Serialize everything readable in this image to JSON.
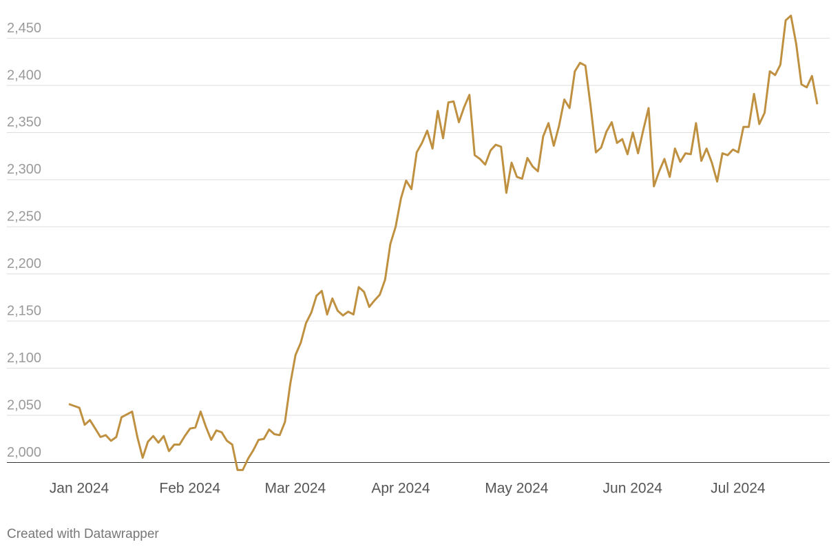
{
  "chart_data": {
    "type": "line",
    "categories": [
      "Jan 2024",
      null,
      null,
      null,
      null,
      null,
      null,
      null,
      null,
      null,
      null,
      null,
      null,
      null,
      null,
      null,
      null,
      null,
      null,
      null,
      null,
      "Feb 2024",
      null,
      null,
      null,
      null,
      null,
      null,
      null,
      null,
      null,
      null,
      null,
      null,
      null,
      null,
      null,
      null,
      null,
      null,
      null,
      "Mar 2024",
      null,
      null,
      null,
      null,
      null,
      null,
      null,
      null,
      null,
      null,
      null,
      null,
      null,
      null,
      null,
      null,
      null,
      null,
      null,
      "Apr 2024",
      null,
      null,
      null,
      null,
      null,
      null,
      null,
      null,
      null,
      null,
      null,
      null,
      null,
      null,
      null,
      null,
      null,
      null,
      null,
      null,
      null,
      "May 2024",
      null,
      null,
      null,
      null,
      null,
      null,
      null,
      null,
      null,
      null,
      null,
      null,
      null,
      null,
      null,
      null,
      null,
      null,
      null,
      null,
      null,
      "Jun 2024",
      null,
      null,
      null,
      null,
      null,
      null,
      null,
      null,
      null,
      null,
      null,
      null,
      null,
      null,
      null,
      null,
      null,
      null,
      null,
      "Jul 2024",
      null,
      null,
      null,
      null,
      null,
      null,
      null,
      null,
      null,
      null,
      null,
      null,
      null,
      null,
      null,
      null,
      null
    ],
    "series": [
      {
        "color": "#bf9040",
        "values": [
          2062,
          2060,
          2058,
          2040,
          2045,
          2036,
          2027,
          2029,
          2023,
          2027,
          2048,
          2051,
          2054,
          2027,
          2005,
          2022,
          2028,
          2021,
          2028,
          2012,
          2019,
          2019,
          2028,
          2036,
          2037,
          2054,
          2038,
          2024,
          2034,
          2032,
          2023,
          2019,
          1992,
          1992,
          2004,
          2013,
          2024,
          2025,
          2035,
          2030,
          2029,
          2043,
          2083,
          2114,
          2127,
          2148,
          2159,
          2177,
          2182,
          2157,
          2174,
          2161,
          2156,
          2160,
          2157,
          2186,
          2181,
          2165,
          2172,
          2178,
          2194,
          2232,
          2250,
          2280,
          2299,
          2290,
          2329,
          2339,
          2352,
          2333,
          2373,
          2344,
          2382,
          2383,
          2361,
          2377,
          2390,
          2326,
          2322,
          2316,
          2331,
          2337,
          2335,
          2286,
          2318,
          2303,
          2301,
          2323,
          2314,
          2309,
          2346,
          2360,
          2336,
          2357,
          2385,
          2376,
          2415,
          2424,
          2421,
          2378,
          2329,
          2334,
          2351,
          2361,
          2339,
          2343,
          2327,
          2350,
          2328,
          2353,
          2376,
          2293,
          2309,
          2322,
          2303,
          2333,
          2319,
          2328,
          2327,
          2360,
          2320,
          2333,
          2318,
          2298,
          2328,
          2326,
          2332,
          2329,
          2356,
          2356,
          2391,
          2359,
          2371,
          2415,
          2411,
          2422,
          2469,
          2474,
          2444,
          2401,
          2398,
          2410,
          2380
        ]
      }
    ],
    "ylim": [
      1985,
      2476
    ],
    "yticks": [
      {
        "value": 2000,
        "label": "2,000"
      },
      {
        "value": 2050,
        "label": "2,050"
      },
      {
        "value": 2100,
        "label": "2,100"
      },
      {
        "value": 2150,
        "label": "2,150"
      },
      {
        "value": 2200,
        "label": "2,200"
      },
      {
        "value": 2250,
        "label": "2,250"
      },
      {
        "value": 2300,
        "label": "2,300"
      },
      {
        "value": 2350,
        "label": "2,350"
      },
      {
        "value": 2400,
        "label": "2,400"
      },
      {
        "value": 2450,
        "label": "2,450"
      }
    ],
    "grid": true,
    "footer": "Created with Datawrapper"
  }
}
